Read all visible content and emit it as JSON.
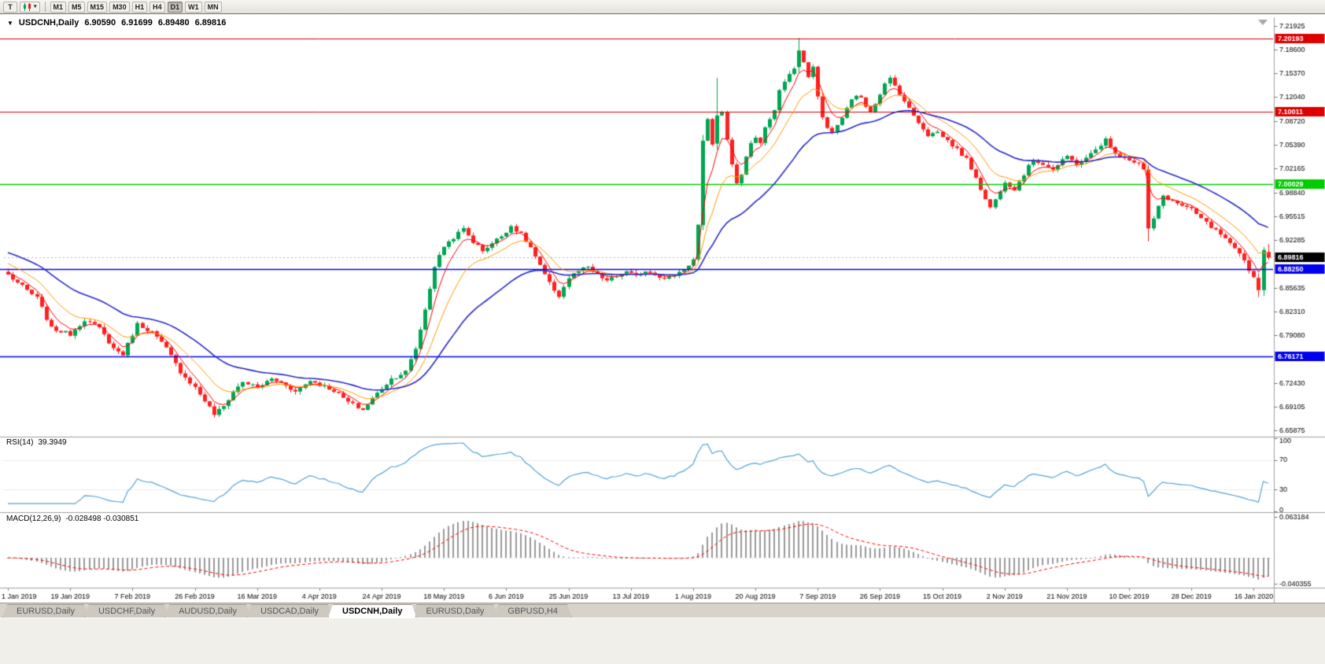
{
  "toolbar": {
    "tool_button": "T",
    "caret": "▾",
    "timeframes": [
      {
        "label": "M1"
      },
      {
        "label": "M5"
      },
      {
        "label": "M15"
      },
      {
        "label": "M30"
      },
      {
        "label": "H1"
      },
      {
        "label": "H4"
      },
      {
        "label": "D1",
        "active": true
      },
      {
        "label": "W1"
      },
      {
        "label": "MN"
      }
    ]
  },
  "chart_header": {
    "collapse_icon": "▼",
    "symbol": "USDCNH,Daily",
    "open": "6.90590",
    "high": "6.91699",
    "low": "6.89480",
    "close": "6.89816"
  },
  "tabbar": {
    "tabs": [
      {
        "label": "EURUSD,Daily"
      },
      {
        "label": "USDCHF,Daily"
      },
      {
        "label": "AUDUSD,Daily"
      },
      {
        "label": "USDCAD,Daily"
      },
      {
        "label": "USDCNH,Daily",
        "active": true
      },
      {
        "label": "EURUSD,Daily"
      },
      {
        "label": "GBPUSD,H4"
      }
    ]
  },
  "colors": {
    "candle_up": "#00a651",
    "candle_down": "#ff2020",
    "axis_text": "#000000",
    "separator": "#a0a0a0",
    "current_price_line": "#b4b4b4",
    "shift_marker": "#a8a8a8"
  },
  "chart_data": {
    "type": "candlestick",
    "symbol": "USDCNH",
    "timeframe": "Daily",
    "ohlc_display": {
      "open": 6.9059,
      "high": 6.91699,
      "low": 6.8948,
      "close": 6.89816
    },
    "price_axis": {
      "min": 6.65,
      "max": 7.231,
      "ticks": [
        "7.21925",
        "7.18600",
        "7.15370",
        "7.12040",
        "7.08720",
        "7.05390",
        "7.02165",
        "6.98840",
        "6.95515",
        "6.92285",
        "6.85635",
        "6.82310",
        "6.79080",
        "6.72430",
        "6.69105",
        "6.65875"
      ]
    },
    "hlines": [
      {
        "price": 7.20193,
        "label": "7.20193",
        "color": "#dd0000",
        "width": 1
      },
      {
        "price": 7.10011,
        "label": "7.10011",
        "color": "#dd0000",
        "width": 1
      },
      {
        "price": 7.00029,
        "label": "7.00029",
        "color": "#00cc00",
        "width": 1.6
      },
      {
        "price": 6.8825,
        "label": "6.88250",
        "color": "#0000ee",
        "width": 1.6
      },
      {
        "price": 6.76171,
        "label": "6.76171",
        "color": "#0000ee",
        "width": 1.6
      }
    ],
    "current_price": {
      "value": 6.89816,
      "label": "6.89816",
      "box_color": "#000000"
    },
    "candles": {
      "count": 264,
      "seed": 7,
      "noise": 0.005,
      "wick_noise": 0.0045,
      "anchors": [
        [
          0,
          6.874
        ],
        [
          3,
          6.858
        ],
        [
          6,
          6.842
        ],
        [
          9,
          6.8
        ],
        [
          13,
          6.792
        ],
        [
          16,
          6.812
        ],
        [
          19,
          6.8
        ],
        [
          22,
          6.772
        ],
        [
          24,
          6.764
        ],
        [
          27,
          6.806
        ],
        [
          30,
          6.795
        ],
        [
          33,
          6.772
        ],
        [
          36,
          6.74
        ],
        [
          39,
          6.718
        ],
        [
          41,
          6.7
        ],
        [
          43,
          6.681
        ],
        [
          45,
          6.692
        ],
        [
          47,
          6.712
        ],
        [
          49,
          6.726
        ],
        [
          52,
          6.718
        ],
        [
          55,
          6.73
        ],
        [
          58,
          6.722
        ],
        [
          60,
          6.712
        ],
        [
          63,
          6.728
        ],
        [
          65,
          6.722
        ],
        [
          68,
          6.714
        ],
        [
          71,
          6.698
        ],
        [
          74,
          6.687
        ],
        [
          76,
          6.703
        ],
        [
          78,
          6.717
        ],
        [
          80,
          6.73
        ],
        [
          83,
          6.74
        ],
        [
          85,
          6.772
        ],
        [
          87,
          6.826
        ],
        [
          89,
          6.886
        ],
        [
          91,
          6.914
        ],
        [
          93,
          6.926
        ],
        [
          95,
          6.938
        ],
        [
          97,
          6.92
        ],
        [
          99,
          6.908
        ],
        [
          101,
          6.918
        ],
        [
          103,
          6.928
        ],
        [
          105,
          6.942
        ],
        [
          107,
          6.93
        ],
        [
          109,
          6.912
        ],
        [
          111,
          6.886
        ],
        [
          113,
          6.862
        ],
        [
          115,
          6.845
        ],
        [
          117,
          6.87
        ],
        [
          119,
          6.88
        ],
        [
          121,
          6.884
        ],
        [
          123,
          6.874
        ],
        [
          125,
          6.866
        ],
        [
          127,
          6.872
        ],
        [
          129,
          6.878
        ],
        [
          131,
          6.872
        ],
        [
          133,
          6.88
        ],
        [
          135,
          6.876
        ],
        [
          137,
          6.868
        ],
        [
          139,
          6.874
        ],
        [
          141,
          6.882
        ],
        [
          143,
          6.895
        ],
        [
          144,
          6.943
        ],
        [
          145,
          7.06
        ],
        [
          146,
          7.088
        ],
        [
          147,
          7.056
        ],
        [
          148,
          7.095
        ],
        [
          149,
          7.102
        ],
        [
          150,
          7.06
        ],
        [
          151,
          7.028
        ],
        [
          152,
          7.002
        ],
        [
          153,
          7.012
        ],
        [
          154,
          7.04
        ],
        [
          155,
          7.055
        ],
        [
          156,
          7.065
        ],
        [
          157,
          7.058
        ],
        [
          158,
          7.078
        ],
        [
          159,
          7.09
        ],
        [
          160,
          7.102
        ],
        [
          161,
          7.128
        ],
        [
          162,
          7.142
        ],
        [
          163,
          7.15
        ],
        [
          164,
          7.162
        ],
        [
          165,
          7.185
        ],
        [
          166,
          7.168
        ],
        [
          167,
          7.15
        ],
        [
          168,
          7.162
        ],
        [
          169,
          7.12
        ],
        [
          170,
          7.092
        ],
        [
          171,
          7.08
        ],
        [
          172,
          7.07
        ],
        [
          173,
          7.082
        ],
        [
          174,
          7.092
        ],
        [
          175,
          7.104
        ],
        [
          176,
          7.116
        ],
        [
          177,
          7.124
        ],
        [
          178,
          7.118
        ],
        [
          179,
          7.108
        ],
        [
          180,
          7.102
        ],
        [
          181,
          7.112
        ],
        [
          182,
          7.126
        ],
        [
          183,
          7.138
        ],
        [
          184,
          7.146
        ],
        [
          185,
          7.136
        ],
        [
          186,
          7.126
        ],
        [
          188,
          7.104
        ],
        [
          190,
          7.086
        ],
        [
          192,
          7.068
        ],
        [
          194,
          7.072
        ],
        [
          196,
          7.06
        ],
        [
          198,
          7.048
        ],
        [
          200,
          7.034
        ],
        [
          202,
          7.01
        ],
        [
          204,
          6.978
        ],
        [
          205,
          6.968
        ],
        [
          206,
          6.978
        ],
        [
          207,
          6.992
        ],
        [
          208,
          7.004
        ],
        [
          210,
          6.993
        ],
        [
          212,
          7.014
        ],
        [
          214,
          7.034
        ],
        [
          216,
          7.028
        ],
        [
          218,
          7.02
        ],
        [
          220,
          7.032
        ],
        [
          221,
          7.038
        ],
        [
          223,
          7.028
        ],
        [
          225,
          7.035
        ],
        [
          227,
          7.048
        ],
        [
          229,
          7.062
        ],
        [
          230,
          7.05
        ],
        [
          232,
          7.04
        ],
        [
          234,
          7.034
        ],
        [
          236,
          7.028
        ],
        [
          237,
          7.02
        ],
        [
          239,
          6.952
        ],
        [
          240,
          6.968
        ],
        [
          241,
          6.984
        ],
        [
          243,
          6.976
        ],
        [
          245,
          6.97
        ],
        [
          247,
          6.964
        ],
        [
          249,
          6.952
        ],
        [
          251,
          6.94
        ],
        [
          253,
          6.93
        ],
        [
          255,
          6.916
        ],
        [
          257,
          6.902
        ],
        [
          258,
          6.894
        ],
        [
          259,
          6.882
        ],
        [
          260,
          6.87
        ],
        [
          261,
          6.858
        ],
        [
          262,
          6.852
        ],
        [
          263,
          6.898
        ]
      ],
      "overrides": [
        [
          145,
          6.943,
          7.068,
          6.936,
          7.06
        ],
        [
          148,
          7.056,
          7.147,
          7.048,
          7.095
        ],
        [
          165,
          7.162,
          7.2025,
          7.154,
          7.185
        ],
        [
          238,
          7.02,
          7.026,
          6.9205,
          6.9385
        ],
        [
          261,
          6.87,
          6.876,
          6.8435,
          6.853
        ],
        [
          262,
          6.853,
          6.9125,
          6.8448,
          6.9086
        ],
        [
          263,
          6.9059,
          6.91699,
          6.8948,
          6.89816
        ]
      ]
    },
    "moving_averages": [
      {
        "name": "ma-fast",
        "period": 5,
        "seed": 6.878,
        "color": "#ff0000",
        "width": 1
      },
      {
        "name": "ma-medium",
        "period": 12,
        "seed": 6.89,
        "color": "#ff9900",
        "width": 1
      },
      {
        "name": "ma-slow",
        "period": 30,
        "seed": 6.905,
        "color": "#2828c8",
        "width": 1.6
      }
    ],
    "x_axis": {
      "labels": [
        {
          "text": "1 Jan 2019",
          "i": 0
        },
        {
          "text": "19 Jan 2019",
          "i": 13
        },
        {
          "text": "7 Feb 2019",
          "i": 26
        },
        {
          "text": "26 Feb 2019",
          "i": 39
        },
        {
          "text": "16 Mar 2019",
          "i": 52
        },
        {
          "text": "4 Apr 2019",
          "i": 65
        },
        {
          "text": "24 Apr 2019",
          "i": 78
        },
        {
          "text": "18 May 2019",
          "i": 91
        },
        {
          "text": "6 Jun 2019",
          "i": 104
        },
        {
          "text": "25 Jun 2019",
          "i": 117
        },
        {
          "text": "13 Jul 2019",
          "i": 130
        },
        {
          "text": "1 Aug 2019",
          "i": 143
        },
        {
          "text": "20 Aug 2019",
          "i": 156
        },
        {
          "text": "7 Sep 2019",
          "i": 169
        },
        {
          "text": "26 Sep 2019",
          "i": 182
        },
        {
          "text": "15 Oct 2019",
          "i": 195
        },
        {
          "text": "2 Nov 2019",
          "i": 208
        },
        {
          "text": "21 Nov 2019",
          "i": 221
        },
        {
          "text": "10 Dec 2019",
          "i": 234
        },
        {
          "text": "28 Dec 2019",
          "i": 247
        },
        {
          "text": "16 Jan 2020",
          "i": 260
        }
      ]
    },
    "rsi": {
      "name": "RSI(14)",
      "value": "39.3949",
      "period": 14,
      "color": "#55a0d5",
      "levels": [
        30,
        70
      ],
      "axis_labels": [
        {
          "v": 100,
          "t": "100"
        },
        {
          "v": 70,
          "t": "70"
        },
        {
          "v": 30,
          "t": "30"
        },
        {
          "v": 0,
          "t": "0"
        }
      ]
    },
    "macd": {
      "name": "MACD(12,26,9)",
      "values": "-0.028498 -0.030851",
      "fast": 12,
      "slow": 26,
      "signal_period": 9,
      "max": 0.068,
      "min": -0.045,
      "axis_max": {
        "v": 0.063184,
        "t": "0.063184"
      },
      "axis_min": {
        "v": -0.040355,
        "t": "-0.040355"
      },
      "histogram_color": "#999999",
      "signal_color": "#ff0000"
    }
  }
}
